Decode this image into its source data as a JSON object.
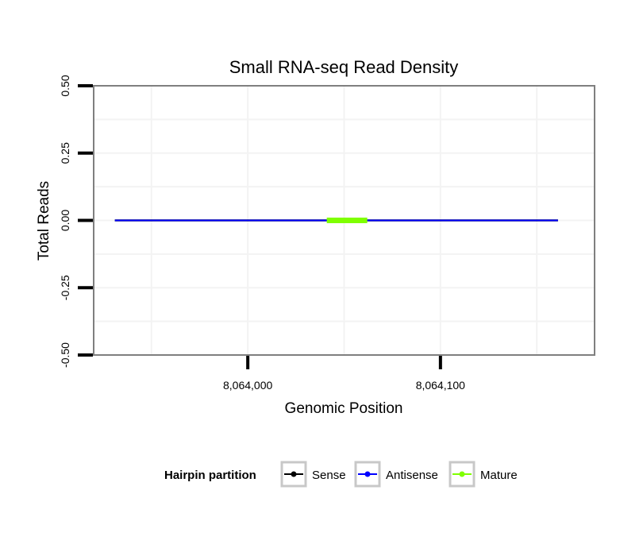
{
  "chart_data": {
    "type": "line",
    "title": "Small RNA-seq Read Density",
    "xlabel": "Genomic Position",
    "ylabel": "Total Reads",
    "xlim": [
      8063920,
      8064180
    ],
    "ylim": [
      -0.5,
      0.5
    ],
    "x_ticks": [
      8064000,
      8064100
    ],
    "x_tick_labels": [
      "8,064,000",
      "8,064,100"
    ],
    "y_ticks": [
      -0.5,
      -0.25,
      0.0,
      0.25,
      0.5
    ],
    "y_tick_labels": [
      "-0.50",
      "-0.25",
      "0.00",
      "0.25",
      "0.50"
    ],
    "grid": true,
    "legend": {
      "title": "Hairpin partition",
      "position": "bottom",
      "entries": [
        {
          "name": "Sense",
          "color": "#000000"
        },
        {
          "name": "Antisense",
          "color": "#0000ff"
        },
        {
          "name": "Mature",
          "color": "#7fff00"
        }
      ]
    },
    "series": [
      {
        "name": "Sense",
        "color": "#000000",
        "x": [
          8063931,
          8064161
        ],
        "y": [
          0,
          0
        ]
      },
      {
        "name": "Antisense",
        "color": "#0000ff",
        "x": [
          8063931,
          8064161
        ],
        "y": [
          0,
          0
        ]
      },
      {
        "name": "Mature",
        "color": "#7fff00",
        "x": [
          8064041,
          8064062
        ],
        "y": [
          0,
          0
        ]
      }
    ]
  }
}
